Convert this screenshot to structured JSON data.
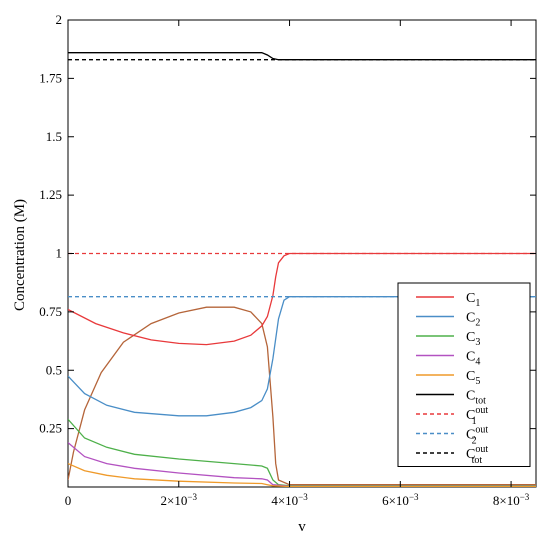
{
  "chart_data": {
    "type": "line",
    "xlabel": "v",
    "ylabel": "Concentration (M)",
    "xlim": [
      0,
      0.00845
    ],
    "ylim": [
      0,
      2
    ],
    "grid": false,
    "legend_position": "right",
    "x_ticks": [
      {
        "value": 0,
        "label": "0"
      },
      {
        "value": 0.002,
        "label": "2×10",
        "exp": "−3"
      },
      {
        "value": 0.004,
        "label": "4×10",
        "exp": "−3"
      },
      {
        "value": 0.006,
        "label": "6×10",
        "exp": "−3"
      },
      {
        "value": 0.008,
        "label": "8×10",
        "exp": "−3"
      }
    ],
    "y_ticks": [
      {
        "value": 0.25,
        "label": "0.25"
      },
      {
        "value": 0.5,
        "label": "0.5"
      },
      {
        "value": 0.75,
        "label": "0.75"
      },
      {
        "value": 1,
        "label": "1"
      },
      {
        "value": 1.25,
        "label": "1.25"
      },
      {
        "value": 1.5,
        "label": "1.5"
      },
      {
        "value": 1.75,
        "label": "1.75"
      },
      {
        "value": 2,
        "label": "2"
      }
    ],
    "series": [
      {
        "name": "C",
        "sub": "1",
        "sup": "",
        "color": "#e8393b",
        "dash": false,
        "points": [
          [
            0,
            0.76
          ],
          [
            0.0005,
            0.7
          ],
          [
            0.001,
            0.66
          ],
          [
            0.0015,
            0.63
          ],
          [
            0.002,
            0.615
          ],
          [
            0.0025,
            0.61
          ],
          [
            0.003,
            0.625
          ],
          [
            0.0033,
            0.65
          ],
          [
            0.0035,
            0.69
          ],
          [
            0.0036,
            0.73
          ],
          [
            0.0037,
            0.82
          ],
          [
            0.00375,
            0.9
          ],
          [
            0.0038,
            0.96
          ],
          [
            0.0039,
            0.99
          ],
          [
            0.004,
            1.0
          ],
          [
            0.00845,
            1.0
          ]
        ]
      },
      {
        "name": "C",
        "sub": "2",
        "sup": "",
        "color": "#4a8ec7",
        "dash": false,
        "points": [
          [
            0,
            0.475
          ],
          [
            0.0003,
            0.4
          ],
          [
            0.0007,
            0.35
          ],
          [
            0.0012,
            0.32
          ],
          [
            0.002,
            0.305
          ],
          [
            0.0025,
            0.305
          ],
          [
            0.003,
            0.32
          ],
          [
            0.0033,
            0.34
          ],
          [
            0.0035,
            0.37
          ],
          [
            0.0036,
            0.42
          ],
          [
            0.0037,
            0.55
          ],
          [
            0.0038,
            0.72
          ],
          [
            0.0039,
            0.8
          ],
          [
            0.004,
            0.815
          ],
          [
            0.00845,
            0.815
          ]
        ]
      },
      {
        "name": "C",
        "sub": "3",
        "sup": "",
        "color": "#4eb04a",
        "dash": false,
        "points": [
          [
            0,
            0.29
          ],
          [
            0.0003,
            0.21
          ],
          [
            0.0007,
            0.17
          ],
          [
            0.0012,
            0.14
          ],
          [
            0.002,
            0.12
          ],
          [
            0.003,
            0.1
          ],
          [
            0.0035,
            0.09
          ],
          [
            0.0036,
            0.08
          ],
          [
            0.0037,
            0.03
          ],
          [
            0.0038,
            0.01
          ],
          [
            0.004,
            0.005
          ],
          [
            0.00845,
            0.005
          ]
        ]
      },
      {
        "name": "C",
        "sub": "4",
        "sup": "",
        "color": "#b352c1",
        "dash": false,
        "points": [
          [
            0,
            0.19
          ],
          [
            0.0003,
            0.13
          ],
          [
            0.0007,
            0.1
          ],
          [
            0.0012,
            0.08
          ],
          [
            0.002,
            0.06
          ],
          [
            0.003,
            0.04
          ],
          [
            0.0035,
            0.035
          ],
          [
            0.0036,
            0.03
          ],
          [
            0.0037,
            0.01
          ],
          [
            0.004,
            0.003
          ],
          [
            0.00845,
            0.003
          ]
        ]
      },
      {
        "name": "C",
        "sub": "5",
        "sup": "",
        "color": "#ef9a2a",
        "dash": false,
        "points": [
          [
            0,
            0.1
          ],
          [
            0.0003,
            0.07
          ],
          [
            0.0007,
            0.05
          ],
          [
            0.0012,
            0.035
          ],
          [
            0.002,
            0.025
          ],
          [
            0.003,
            0.017
          ],
          [
            0.0035,
            0.015
          ],
          [
            0.0036,
            0.01
          ],
          [
            0.0037,
            0.005
          ],
          [
            0.004,
            0.002
          ],
          [
            0.00845,
            0.002
          ]
        ]
      },
      {
        "name": "C",
        "sub": "tot",
        "sup": "",
        "color": "#000000",
        "dash": false,
        "points": [
          [
            0,
            1.86
          ],
          [
            0.0035,
            1.86
          ],
          [
            0.0036,
            1.85
          ],
          [
            0.0037,
            1.835
          ],
          [
            0.0038,
            1.83
          ],
          [
            0.00845,
            1.83
          ]
        ]
      },
      {
        "name": "C",
        "sub": "1",
        "sup": "out",
        "color": "#e8393b",
        "dash": true,
        "points": [
          [
            0,
            1.0
          ],
          [
            0.00845,
            1.0
          ]
        ]
      },
      {
        "name": "C",
        "sub": "2",
        "sup": "out",
        "color": "#4a8ec7",
        "dash": true,
        "points": [
          [
            0,
            0.815
          ],
          [
            0.00845,
            0.815
          ]
        ]
      },
      {
        "name": "C",
        "sub": "tot",
        "sup": "out",
        "color": "#000000",
        "dash": true,
        "points": [
          [
            0,
            1.83
          ],
          [
            0.00845,
            1.83
          ]
        ]
      }
    ],
    "unlabeled_series": [
      {
        "color": "#b5653a",
        "dash": false,
        "points": [
          [
            0,
            0.03
          ],
          [
            0.0001,
            0.15
          ],
          [
            0.0003,
            0.33
          ],
          [
            0.0006,
            0.49
          ],
          [
            0.001,
            0.62
          ],
          [
            0.0015,
            0.7
          ],
          [
            0.002,
            0.745
          ],
          [
            0.0025,
            0.77
          ],
          [
            0.003,
            0.77
          ],
          [
            0.0033,
            0.75
          ],
          [
            0.0035,
            0.7
          ],
          [
            0.0036,
            0.6
          ],
          [
            0.0037,
            0.3
          ],
          [
            0.00375,
            0.1
          ],
          [
            0.0038,
            0.03
          ],
          [
            0.004,
            0.01
          ],
          [
            0.00845,
            0.01
          ]
        ]
      }
    ]
  }
}
